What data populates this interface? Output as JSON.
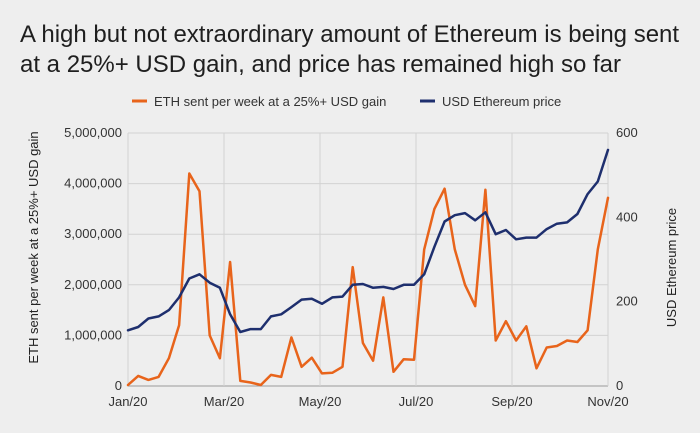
{
  "chart_data": {
    "type": "line",
    "title": "A high but not extraordinary amount of Ethereum is being sent at a 25%+ USD gain, and price has remained high so far",
    "xlabel": "",
    "ylabel_left": "ETH sent per week at a 25%+ USD gain",
    "ylabel_right": "USD Ethereum price",
    "x_tick_labels": [
      "Jan/20",
      "Mar/20",
      "May/20",
      "Jul/20",
      "Sep/20",
      "Nov/20"
    ],
    "y_left_ticks": [
      "0",
      "1,000,000",
      "2,000,000",
      "3,000,000",
      "4,000,000",
      "5,000,000"
    ],
    "y_right_ticks": [
      "0",
      "200",
      "400",
      "600"
    ],
    "ylim_left": [
      0,
      5000000
    ],
    "ylim_right": [
      0,
      600
    ],
    "xlim_weeks": [
      0,
      47
    ],
    "grid": true,
    "legend_position": "top",
    "series": [
      {
        "name": "ETH sent per week at a 25%+ USD gain",
        "axis": "left",
        "color": "#e8641b",
        "x": [
          0,
          1,
          2,
          3,
          4,
          5,
          6,
          7,
          8,
          9,
          10,
          11,
          12,
          13,
          14,
          15,
          16,
          17,
          18,
          19,
          20,
          21,
          22,
          23,
          24,
          25,
          26,
          27,
          28,
          29,
          30,
          31,
          32,
          33,
          34,
          35,
          36,
          37,
          38,
          39,
          40,
          41,
          42,
          43,
          44,
          45,
          46,
          47
        ],
        "values": [
          20000,
          200000,
          120000,
          180000,
          550000,
          1200000,
          4200000,
          3850000,
          1000000,
          550000,
          2450000,
          100000,
          70000,
          20000,
          220000,
          180000,
          960000,
          380000,
          560000,
          250000,
          260000,
          380000,
          2350000,
          850000,
          500000,
          1750000,
          280000,
          530000,
          520000,
          2700000,
          3500000,
          3900000,
          2700000,
          2000000,
          1580000,
          3880000,
          900000,
          1280000,
          900000,
          1180000,
          350000,
          760000,
          790000,
          900000,
          870000,
          1100000,
          2700000,
          3720000
        ]
      },
      {
        "name": "USD Ethereum price",
        "axis": "right",
        "color": "#1e2f6e",
        "x": [
          0,
          1,
          2,
          3,
          4,
          5,
          6,
          7,
          8,
          9,
          10,
          11,
          12,
          13,
          14,
          15,
          16,
          17,
          18,
          19,
          20,
          21,
          22,
          23,
          24,
          25,
          26,
          27,
          28,
          29,
          30,
          31,
          32,
          33,
          34,
          35,
          36,
          37,
          38,
          39,
          40,
          41,
          42,
          43,
          44,
          45,
          46,
          47
        ],
        "values": [
          132,
          140,
          160,
          165,
          180,
          210,
          255,
          265,
          245,
          233,
          170,
          128,
          135,
          135,
          165,
          170,
          187,
          205,
          207,
          195,
          210,
          212,
          240,
          242,
          233,
          235,
          230,
          240,
          240,
          265,
          330,
          390,
          405,
          410,
          393,
          412,
          360,
          370,
          348,
          352,
          352,
          372,
          385,
          388,
          408,
          455,
          485,
          560
        ]
      }
    ]
  }
}
